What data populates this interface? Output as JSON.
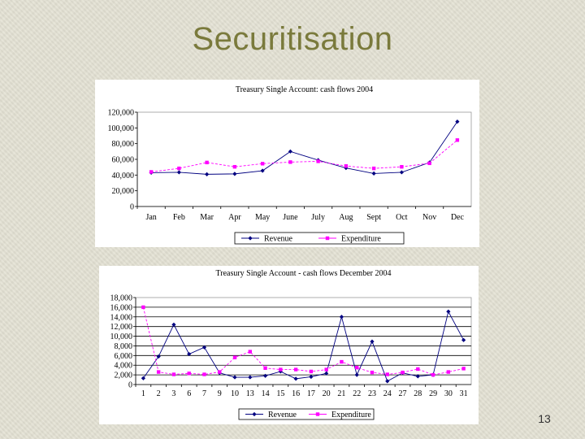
{
  "slide": {
    "title": "Securitisation",
    "page_number": "13"
  },
  "chart_data": [
    {
      "type": "line",
      "title": "Treasury Single Account: cash flows 2004",
      "categories": [
        "Jan",
        "Feb",
        "Mar",
        "Apr",
        "May",
        "June",
        "July",
        "Aug",
        "Sept",
        "Oct",
        "Nov",
        "Dec"
      ],
      "y_ticks": [
        "0",
        "20,000",
        "40,000",
        "60,000",
        "80,000",
        "100,000",
        "120,000"
      ],
      "ylim": [
        0,
        120000
      ],
      "grid": false,
      "legend_position": "bottom",
      "series": [
        {
          "name": "Revenue",
          "color": "#000080",
          "marker": "diamond",
          "values": [
            43000,
            43500,
            41000,
            41500,
            45500,
            70000,
            59000,
            49000,
            42000,
            43500,
            56000,
            108000
          ]
        },
        {
          "name": "Expenditure",
          "color": "#ff00ff",
          "marker": "square",
          "values": [
            44000,
            48500,
            56000,
            50500,
            54500,
            56500,
            57500,
            51500,
            48500,
            50500,
            55000,
            84500
          ]
        }
      ]
    },
    {
      "type": "line",
      "title": "Treasury Single Account - cash flows December 2004",
      "categories": [
        "1",
        "2",
        "3",
        "6",
        "7",
        "9",
        "10",
        "13",
        "14",
        "15",
        "16",
        "17",
        "20",
        "21",
        "22",
        "23",
        "24",
        "27",
        "28",
        "29",
        "30",
        "31"
      ],
      "y_ticks": [
        "0",
        "2,000",
        "4,000",
        "6,000",
        "8,000",
        "10,000",
        "12,000",
        "14,000",
        "16,000",
        "18,000"
      ],
      "ylim": [
        0,
        18000
      ],
      "grid": true,
      "legend_position": "bottom",
      "series": [
        {
          "name": "Revenue",
          "color": "#000080",
          "marker": "diamond",
          "values": [
            1300,
            5800,
            12400,
            6300,
            7700,
            2400,
            1500,
            1500,
            1800,
            2700,
            1200,
            1600,
            2300,
            14000,
            2000,
            8900,
            700,
            2400,
            1700,
            2000,
            15100,
            9200
          ]
        },
        {
          "name": "Expenditure",
          "color": "#ff00ff",
          "marker": "square",
          "values": [
            16000,
            2600,
            2100,
            2300,
            2100,
            2600,
            5600,
            6800,
            3400,
            3100,
            3100,
            2700,
            3100,
            4700,
            3500,
            2500,
            2100,
            2500,
            3200,
            2000,
            2600,
            3300
          ]
        }
      ]
    }
  ]
}
